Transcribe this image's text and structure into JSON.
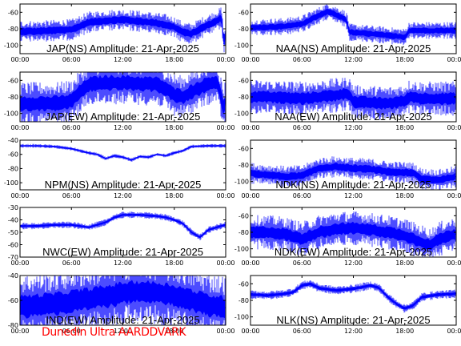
{
  "footer": "Dunedin Ultra AARDDVARK",
  "colors": {
    "trace": "#0000ff",
    "axes": "#000000",
    "footer": "#ff0000",
    "background": "#ffffff"
  },
  "x_tick_labels": [
    "00:00",
    "06:00",
    "12:00",
    "18:00",
    "00:00"
  ],
  "chart_data": [
    {
      "type": "line",
      "title": "JAP(NS) Amplitude: 21-Apr-2025",
      "x_unit": "hours UT",
      "xlim": [
        0,
        24
      ],
      "ylim": [
        -110,
        -50
      ],
      "yticks": [
        -100,
        -80,
        -60
      ],
      "band": 5,
      "x": [
        0,
        2,
        4,
        6,
        6.5,
        8,
        10,
        12,
        14,
        16,
        17,
        18,
        19,
        20,
        21,
        22,
        23,
        23.5,
        23.8,
        24
      ],
      "values": [
        -83,
        -83,
        -82,
        -81,
        -79,
        -72,
        -70,
        -69,
        -71,
        -73,
        -75,
        -78,
        -84,
        -86,
        -80,
        -75,
        -70,
        -66,
        -98,
        -85
      ]
    },
    {
      "type": "line",
      "title": "NAA(NS) Amplitude: 21-Apr-2025",
      "x_unit": "hours UT",
      "xlim": [
        0,
        24
      ],
      "ylim": [
        -110,
        -50
      ],
      "yticks": [
        -100,
        -80,
        -60
      ],
      "band": 4,
      "x": [
        0,
        2,
        4,
        6,
        7,
        8,
        9,
        10,
        11,
        11.3,
        11.5,
        14,
        16,
        18,
        18.3,
        18.5,
        20,
        22,
        24
      ],
      "values": [
        -79,
        -78,
        -77,
        -74,
        -69,
        -64,
        -59,
        -63,
        -68,
        -72,
        -84,
        -86,
        -88,
        -90,
        -86,
        -82,
        -82,
        -82,
        -82
      ]
    },
    {
      "type": "line",
      "title": "JAP(EW) Amplitude: 21-Apr-2025",
      "x_unit": "hours UT",
      "xlim": [
        0,
        24
      ],
      "ylim": [
        -110,
        -50
      ],
      "yticks": [
        -100,
        -80,
        -60
      ],
      "band": 10,
      "x": [
        0,
        2,
        4,
        5,
        6,
        7,
        8,
        10,
        12,
        14,
        16,
        17,
        18,
        19,
        20,
        22,
        23,
        23.8,
        24
      ],
      "values": [
        -88,
        -88,
        -88,
        -87,
        -85,
        -74,
        -65,
        -63,
        -63,
        -64,
        -65,
        -70,
        -78,
        -80,
        -74,
        -64,
        -62,
        -95,
        -80
      ]
    },
    {
      "type": "line",
      "title": "NAA(EW) Amplitude: 21-Apr-2025",
      "x_unit": "hours UT",
      "xlim": [
        0,
        24
      ],
      "ylim": [
        -110,
        -50
      ],
      "yticks": [
        -100,
        -80,
        -60
      ],
      "band": 8,
      "x": [
        0,
        2,
        4,
        6,
        8,
        10,
        11.5,
        12,
        14,
        16,
        18,
        18.5,
        20,
        22,
        24
      ],
      "values": [
        -80,
        -80,
        -81,
        -82,
        -80,
        -78,
        -76,
        -86,
        -87,
        -88,
        -85,
        -80,
        -82,
        -82,
        -82
      ]
    },
    {
      "type": "line",
      "title": "NPM(NS) Amplitude: 21-Apr-2025",
      "x_unit": "hours UT",
      "xlim": [
        0,
        24
      ],
      "ylim": [
        -110,
        -40
      ],
      "yticks": [
        -100,
        -80,
        -60,
        -40
      ],
      "band": 1,
      "x": [
        0,
        2,
        4,
        6,
        8,
        9,
        10,
        11,
        12,
        13,
        14,
        15,
        16,
        17,
        18,
        19,
        20,
        22,
        24
      ],
      "values": [
        -48,
        -48,
        -49,
        -52,
        -58,
        -60,
        -66,
        -62,
        -64,
        -68,
        -63,
        -64,
        -60,
        -62,
        -58,
        -55,
        -49,
        -48,
        -48
      ]
    },
    {
      "type": "line",
      "title": "NDK(NS) Amplitude: 21-Apr-2025",
      "x_unit": "hours UT",
      "xlim": [
        0,
        24
      ],
      "ylim": [
        -110,
        -50
      ],
      "yticks": [
        -100,
        -80,
        -60
      ],
      "band": 5,
      "x": [
        0,
        2,
        4,
        6,
        8,
        10,
        12,
        14,
        16,
        18,
        19,
        20,
        22,
        24
      ],
      "values": [
        -90,
        -92,
        -94,
        -93,
        -84,
        -82,
        -84,
        -85,
        -88,
        -89,
        -90,
        -97,
        -98,
        -94
      ]
    },
    {
      "type": "line",
      "title": "NWC(EW) Amplitude: 21-Apr-2025",
      "x_unit": "hours UT",
      "xlim": [
        0,
        24
      ],
      "ylim": [
        -70,
        -30
      ],
      "yticks": [
        -70,
        -60,
        -50,
        -40,
        -30
      ],
      "band": 1,
      "x": [
        0,
        2,
        4,
        6,
        8,
        10,
        11,
        12,
        14,
        16,
        17,
        18,
        19,
        20,
        21,
        22,
        24
      ],
      "values": [
        -45,
        -45,
        -44,
        -44,
        -46,
        -42,
        -38,
        -36,
        -36,
        -37,
        -38,
        -40,
        -43,
        -50,
        -54,
        -48,
        -44
      ]
    },
    {
      "type": "line",
      "title": "NDK(EW) Amplitude: 21-Apr-2025",
      "x_unit": "hours UT",
      "xlim": [
        0,
        24
      ],
      "ylim": [
        -110,
        -50
      ],
      "yticks": [
        -100,
        -80,
        -60
      ],
      "band": 8,
      "x": [
        0,
        2,
        4,
        6,
        8,
        10,
        12,
        14,
        16,
        18,
        20,
        21,
        22,
        24
      ],
      "values": [
        -80,
        -80,
        -82,
        -88,
        -80,
        -76,
        -75,
        -77,
        -80,
        -84,
        -92,
        -96,
        -88,
        -82
      ]
    },
    {
      "type": "line",
      "title": "IND(EW) Amplitude: 21-Apr-2025",
      "x_unit": "hours UT",
      "xlim": [
        0,
        24
      ],
      "ylim": [
        -80,
        -40
      ],
      "yticks": [
        -80,
        -60,
        -40
      ],
      "band": 10,
      "x": [
        0,
        2,
        4,
        6,
        8,
        10,
        12,
        14,
        16,
        18,
        20,
        22,
        24
      ],
      "values": [
        -65,
        -64,
        -63,
        -61,
        -59,
        -57,
        -54,
        -53,
        -54,
        -56,
        -60,
        -64,
        -66
      ]
    },
    {
      "type": "line",
      "title": "NLK(NS) Amplitude: 21-Apr-2025",
      "x_unit": "hours UT",
      "xlim": [
        0,
        24
      ],
      "ylim": [
        -110,
        -50
      ],
      "yticks": [
        -100,
        -80,
        -60
      ],
      "band": 2,
      "x": [
        0,
        2,
        4,
        5,
        6,
        7,
        8,
        10,
        12,
        13,
        14,
        15,
        16,
        17,
        18,
        19,
        20,
        22,
        24
      ],
      "values": [
        -73,
        -74,
        -72,
        -70,
        -62,
        -60,
        -65,
        -68,
        -66,
        -64,
        -62,
        -65,
        -76,
        -84,
        -90,
        -86,
        -76,
        -73,
        -72
      ]
    }
  ]
}
